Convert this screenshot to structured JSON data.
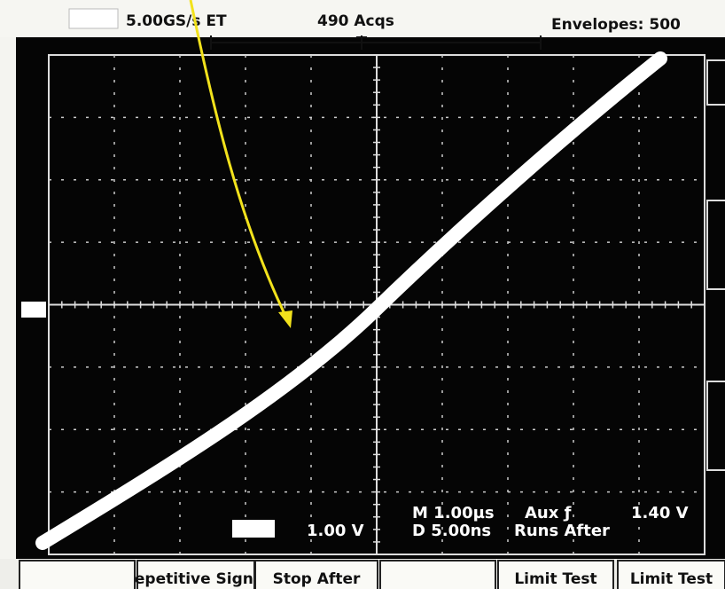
{
  "header": {
    "sample_rate": "5.00GS/s ET",
    "acquisitions": "490 Acqs",
    "envelopes": "Envelopes: 500"
  },
  "readouts": {
    "channel_scale": "1.00 V",
    "main_timebase": "M 1.00µs",
    "trigger_source": "Aux ƒ",
    "trigger_level": "1.40 V",
    "delayed_timebase": "D 5.00ns",
    "delay_mode": "Runs After"
  },
  "buttons": [
    "Repetitive Signal",
    "Stop After",
    "Limit Test",
    "Limit Test"
  ]
}
